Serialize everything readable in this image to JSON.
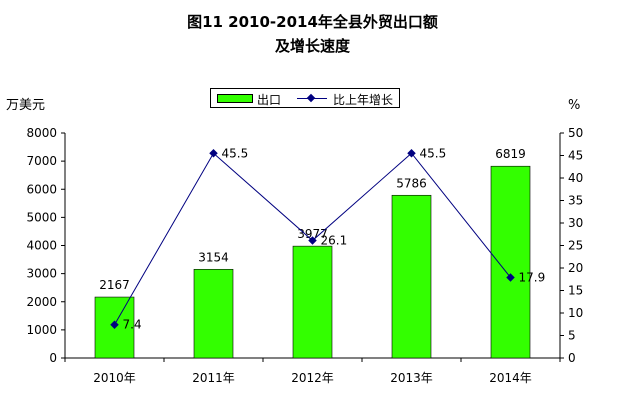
{
  "title_line1": "图11  2010-2014年全县外贸出口额",
  "title_line2": "及增长速度",
  "y_left_unit": "万美元",
  "y_right_unit": "%",
  "chart_data": {
    "type": "bar",
    "categories": [
      "2010年",
      "2011年",
      "2012年",
      "2013年",
      "2014年"
    ],
    "series": [
      {
        "name": "出口",
        "type": "bar",
        "axis": "left",
        "values": [
          2167,
          3154,
          3977,
          5786,
          6819
        ],
        "color": "#33ff00"
      },
      {
        "name": "比上年增长",
        "type": "line",
        "axis": "right",
        "values": [
          7.4,
          45.5,
          26.1,
          45.5,
          17.9
        ],
        "color": "#000080"
      }
    ],
    "y_left": {
      "min": 0,
      "max": 8000,
      "step": 1000
    },
    "y_right": {
      "min": 0,
      "max": 50,
      "step": 5
    },
    "grid": false,
    "legend_position": "top-center"
  }
}
